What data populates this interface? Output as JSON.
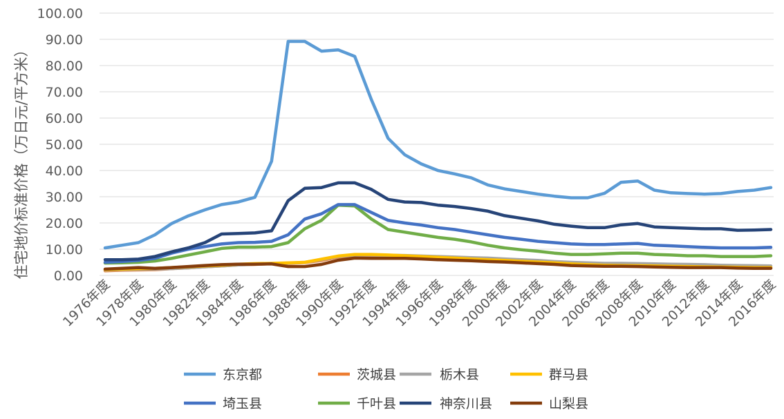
{
  "chart_data": {
    "type": "line",
    "title": "",
    "xlabel": "",
    "ylabel": "住宅地价标准价格（万日元/平方米）",
    "ylim": [
      0,
      100
    ],
    "y_ticks": [
      "0.00",
      "10.00",
      "20.00",
      "30.00",
      "40.00",
      "50.00",
      "60.00",
      "70.00",
      "80.00",
      "90.00",
      "100.00"
    ],
    "x": [
      "1976年度",
      "1977年度",
      "1978年度",
      "1979年度",
      "1980年度",
      "1981年度",
      "1982年度",
      "1983年度",
      "1984年度",
      "1985年度",
      "1986年度",
      "1987年度",
      "1988年度",
      "1989年度",
      "1990年度",
      "1991年度",
      "1992年度",
      "1993年度",
      "1994年度",
      "1995年度",
      "1996年度",
      "1997年度",
      "1998年度",
      "1999年度",
      "2000年度",
      "2001年度",
      "2002年度",
      "2003年度",
      "2004年度",
      "2005年度",
      "2006年度",
      "2007年度",
      "2008年度",
      "2009年度",
      "2010年度",
      "2011年度",
      "2012年度",
      "2013年度",
      "2014年度",
      "2015年度",
      "2016年度"
    ],
    "x_tick_labels": [
      "1976年度",
      "1978年度",
      "1980年度",
      "1982年度",
      "1984年度",
      "1986年度",
      "1988年度",
      "1990年度",
      "1992年度",
      "1994年度",
      "1996年度",
      "1998年度",
      "2000年度",
      "2002年度",
      "2004年度",
      "2006年度",
      "2008年度",
      "2010年度",
      "2012年度",
      "2014年度",
      "2016年度"
    ],
    "grid": true,
    "legend_position": "bottom",
    "series": [
      {
        "name": "东京都",
        "color": "#5B9BD5",
        "values": [
          10.5,
          11.5,
          12.5,
          15.5,
          19.8,
          22.7,
          25,
          27,
          28,
          29.8,
          43.5,
          89.2,
          89.2,
          85.5,
          86,
          83.5,
          67,
          52.3,
          46,
          42.5,
          40,
          38.7,
          37.2,
          34.5,
          33,
          32,
          31,
          30.2,
          29.6,
          29.6,
          31.3,
          35.5,
          36,
          32.5,
          31.5,
          31.2,
          31,
          31.2,
          32,
          32.5,
          33.5
        ]
      },
      {
        "name": "茨城县",
        "color": "#ED7D31",
        "values": [
          1.8,
          2,
          2.1,
          2.2,
          2.6,
          2.9,
          3.3,
          3.6,
          4,
          4.2,
          4.5,
          4.6,
          4.9,
          5.7,
          7,
          7.5,
          7.4,
          7.3,
          7.2,
          7,
          6.8,
          6.5,
          6.2,
          5.9,
          5.6,
          5.3,
          5,
          4.6,
          4.3,
          4,
          3.8,
          3.7,
          3.6,
          3.5,
          3.4,
          3.3,
          3.2,
          3.1,
          3,
          3,
          3
        ]
      },
      {
        "name": "栃木县",
        "color": "#A5A5A5",
        "values": [
          2,
          2.2,
          2.3,
          2.4,
          2.6,
          2.9,
          3.3,
          3.6,
          4,
          4.3,
          4.5,
          4.7,
          5,
          6,
          7.2,
          7.8,
          7.8,
          7.7,
          7.6,
          7.4,
          7.2,
          7,
          6.8,
          6.6,
          6.3,
          6,
          5.7,
          5.3,
          5,
          4.8,
          4.6,
          4.6,
          4.5,
          4.4,
          4.3,
          4.2,
          4.1,
          3.9,
          3.8,
          3.7,
          3.6
        ]
      },
      {
        "name": "群马县",
        "color": "#FFC000",
        "values": [
          2.2,
          2.4,
          2.6,
          2.7,
          3,
          3.3,
          3.6,
          3.9,
          4.3,
          4.5,
          4.6,
          4.8,
          5,
          6.2,
          7.4,
          8,
          8,
          7.8,
          7.5,
          7.2,
          6.9,
          6.6,
          6.3,
          6,
          5.7,
          5.4,
          5.1,
          4.8,
          4.4,
          4.1,
          3.9,
          3.8,
          3.7,
          3.6,
          3.5,
          3.4,
          3.3,
          3.2,
          3.1,
          3,
          3
        ]
      },
      {
        "name": "埼玉县",
        "color": "#4472C4",
        "values": [
          5,
          5.3,
          5.7,
          6.5,
          8.5,
          10,
          11,
          12,
          12.5,
          12.6,
          13,
          15.5,
          21.5,
          23.5,
          27,
          27,
          24,
          21,
          20,
          19.2,
          18.2,
          17.5,
          16.5,
          15.5,
          14.5,
          13.8,
          13,
          12.5,
          12,
          11.8,
          11.8,
          12,
          12.2,
          11.5,
          11.3,
          11,
          10.7,
          10.5,
          10.5,
          10.5,
          10.7
        ]
      },
      {
        "name": "千叶县",
        "color": "#70AD47",
        "values": [
          4.7,
          4.8,
          5,
          5.5,
          6.5,
          7.8,
          9,
          10.3,
          10.8,
          10.8,
          11,
          12.5,
          17.8,
          21,
          26.8,
          26.5,
          21.5,
          17.5,
          16.5,
          15.5,
          14.5,
          13.8,
          12.8,
          11.5,
          10.5,
          9.8,
          9.2,
          8.5,
          8,
          8,
          8.2,
          8.5,
          8.5,
          8,
          7.8,
          7.5,
          7.5,
          7.2,
          7.2,
          7.2,
          7.5
        ]
      },
      {
        "name": "神奈川县",
        "color": "#264478",
        "values": [
          6,
          6,
          6.2,
          7.2,
          9,
          10.5,
          12.5,
          15.8,
          16,
          16.2,
          17,
          28.5,
          33.2,
          33.5,
          35.3,
          35.3,
          32.8,
          29,
          28,
          27.8,
          26.8,
          26.3,
          25.5,
          24.5,
          22.8,
          21.8,
          20.8,
          19.5,
          18.8,
          18.2,
          18.2,
          19.3,
          19.8,
          18.5,
          18.2,
          18,
          17.8,
          17.8,
          17.2,
          17.3,
          17.5
        ]
      },
      {
        "name": "山梨县",
        "color": "#843C0C",
        "values": [
          2.4,
          2.7,
          3,
          2.7,
          3,
          3.4,
          3.8,
          4.1,
          4.3,
          4.3,
          4.4,
          3.4,
          3.4,
          4.2,
          5.8,
          6.6,
          6.5,
          6.5,
          6.5,
          6.3,
          6,
          5.8,
          5.6,
          5.3,
          5.1,
          4.8,
          4.5,
          4.2,
          3.8,
          3.6,
          3.5,
          3.5,
          3.4,
          3.2,
          3.1,
          3,
          3,
          3,
          2.8,
          2.7,
          2.7
        ]
      }
    ]
  }
}
